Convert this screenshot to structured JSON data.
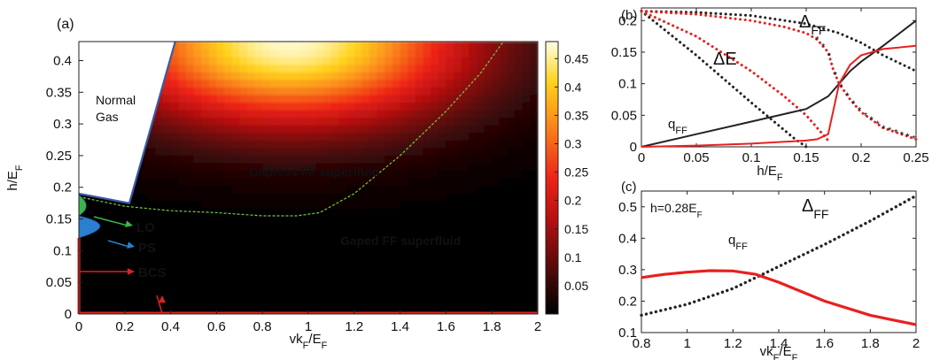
{
  "colors": {
    "red_curve": "#e8201e",
    "black_curve": "#222222",
    "phase_border": "#e02020",
    "gas_border": "#3a5aa8",
    "lo": "#3cb54a",
    "ps": "#2a7fd0",
    "bcs": "#e02020",
    "boundary_dash": "#7ac943"
  },
  "chart_data": [
    {
      "panel": "(a)",
      "type": "heatmap",
      "xlabel": "vk_F/E_F",
      "ylabel": "h/E_F",
      "xlim": [
        0,
        2
      ],
      "ylim": [
        0,
        0.43
      ],
      "xticks": [
        "0",
        "0.2",
        "0.4",
        "0.6",
        "0.8",
        "1",
        "1.2",
        "1.4",
        "1.6",
        "1.8",
        "2"
      ],
      "yticks": [
        "0",
        "0.05",
        "0.1",
        "0.15",
        "0.2",
        "0.25",
        "0.3",
        "0.35",
        "0.4"
      ],
      "colorbar": {
        "range": [
          0,
          0.48
        ],
        "ticks": [
          "0.05",
          "0.1",
          "0.15",
          "0.2",
          "0.25",
          "0.3",
          "0.35",
          "0.4",
          "0.45"
        ]
      },
      "annotations": [
        "Normal Gas",
        "Gapless FF superfluid",
        "Gaped FF superfluid",
        "LO",
        "PS",
        "BCS"
      ],
      "normal_gas_boundary": {
        "x": [
          0,
          0.22,
          0.42
        ],
        "y": [
          0.19,
          0.175,
          0.43
        ]
      },
      "gapless_boundary": {
        "x": [
          0,
          0.2,
          0.4,
          0.6,
          0.8,
          0.95,
          1.05,
          1.2,
          1.4,
          1.6,
          1.75,
          1.85
        ],
        "y": [
          0.185,
          0.17,
          0.163,
          0.16,
          0.155,
          0.155,
          0.16,
          0.19,
          0.25,
          0.32,
          0.38,
          0.43
        ]
      }
    },
    {
      "panel": "(b)",
      "type": "line",
      "xlabel": "h/E_F",
      "xlim": [
        0,
        0.25
      ],
      "ylim": [
        0,
        0.22
      ],
      "xticks": [
        "0",
        "0.05",
        "0.1",
        "0.15",
        "0.2",
        "0.25"
      ],
      "yticks": [
        "0",
        "0.05",
        "0.1",
        "0.15",
        "0.2"
      ],
      "labels": [
        "Δ_FF",
        "ΔE",
        "q_FF"
      ],
      "series": [
        {
          "color": "black",
          "style": "dotted",
          "x": [
            0,
            0.05,
            0.1,
            0.15,
            0.18,
            0.2,
            0.22,
            0.25
          ],
          "y": [
            0.215,
            0.213,
            0.208,
            0.195,
            0.18,
            0.165,
            0.145,
            0.12
          ]
        },
        {
          "color": "red",
          "style": "dotted",
          "x": [
            0,
            0.05,
            0.1,
            0.13,
            0.15,
            0.16,
            0.17,
            0.175,
            0.18,
            0.19,
            0.2,
            0.22,
            0.25
          ],
          "y": [
            0.215,
            0.21,
            0.2,
            0.19,
            0.18,
            0.17,
            0.15,
            0.12,
            0.1,
            0.075,
            0.055,
            0.03,
            0.012
          ]
        },
        {
          "color": "black",
          "style": "dotted",
          "x": [
            0,
            0.05,
            0.1,
            0.14,
            0.15
          ],
          "y": [
            0.215,
            0.145,
            0.07,
            0.012,
            0
          ]
        },
        {
          "color": "red",
          "style": "dotted",
          "x": [
            0,
            0.05,
            0.1,
            0.13,
            0.15,
            0.16,
            0.17
          ],
          "y": [
            0.215,
            0.175,
            0.12,
            0.08,
            0.05,
            0.03,
            0.01
          ]
        },
        {
          "color": "black",
          "style": "solid",
          "x": [
            0,
            0.05,
            0.1,
            0.15,
            0.17,
            0.18,
            0.19,
            0.2,
            0.22,
            0.25
          ],
          "y": [
            0,
            0.02,
            0.04,
            0.06,
            0.08,
            0.1,
            0.12,
            0.135,
            0.16,
            0.2
          ]
        },
        {
          "color": "red",
          "style": "solid",
          "x": [
            0,
            0.05,
            0.1,
            0.15,
            0.16,
            0.17,
            0.175,
            0.18,
            0.19,
            0.2,
            0.22,
            0.25
          ],
          "y": [
            0,
            0.002,
            0.005,
            0.01,
            0.012,
            0.02,
            0.06,
            0.1,
            0.13,
            0.145,
            0.155,
            0.16
          ]
        }
      ]
    },
    {
      "panel": "(c)",
      "type": "line",
      "xlabel": "vk_F/E_F",
      "annotation": "h=0.28E_F",
      "labels": [
        "Δ_FF",
        "q_FF"
      ],
      "xlim": [
        0.8,
        2
      ],
      "ylim": [
        0.1,
        0.55
      ],
      "xticks": [
        "0.8",
        "1",
        "1.2",
        "1.4",
        "1.6",
        "1.8",
        "2"
      ],
      "yticks": [
        "0.1",
        "0.2",
        "0.3",
        "0.4",
        "0.5"
      ],
      "series": [
        {
          "color": "black",
          "style": "dotted",
          "x": [
            0.8,
            1,
            1.2,
            1.3,
            1.4,
            1.6,
            1.8,
            2
          ],
          "y": [
            0.155,
            0.19,
            0.24,
            0.275,
            0.31,
            0.38,
            0.455,
            0.535
          ]
        },
        {
          "color": "red",
          "style": "solid",
          "x": [
            0.8,
            0.9,
            1,
            1.1,
            1.2,
            1.3,
            1.4,
            1.6,
            1.8,
            2
          ],
          "y": [
            0.275,
            0.285,
            0.292,
            0.297,
            0.296,
            0.285,
            0.26,
            0.2,
            0.155,
            0.125
          ]
        }
      ]
    }
  ]
}
